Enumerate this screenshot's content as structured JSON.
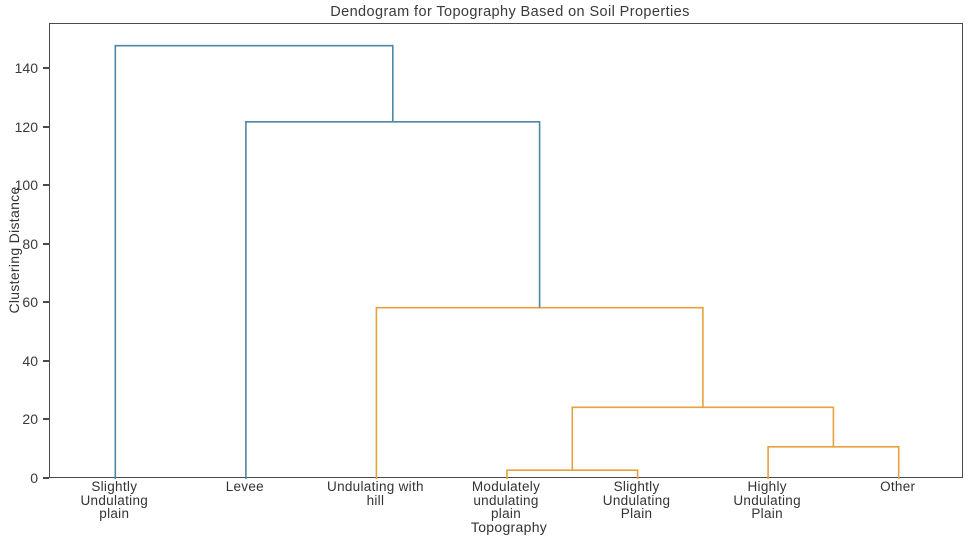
{
  "chart_data": {
    "type": "dendrogram",
    "title": "Dendogram for Topography Based on Soil Properties",
    "xlabel": "Topography",
    "ylabel": "Clustering Distance",
    "ylim": [
      0,
      155.4
    ],
    "yticks": [
      0,
      20,
      40,
      60,
      80,
      100,
      120,
      140
    ],
    "grid": false,
    "legend": false,
    "leaf_order": [
      "Slightly Undulating plain",
      "Levee",
      "Undulating with hill",
      "Modulately undulating plain",
      "Slightly Undulating Plain",
      "Highly Undulating Plain",
      "Other"
    ],
    "leaf_label_lines": [
      [
        "Slightly",
        "Undulating",
        "plain"
      ],
      [
        "Levee"
      ],
      [
        "Undulating with",
        "hill"
      ],
      [
        "Modulately",
        "undulating",
        "plain"
      ],
      [
        "Slightly",
        "Undulating",
        "Plain"
      ],
      [
        "Highly",
        "Undulating",
        "Plain"
      ],
      [
        "Other"
      ]
    ],
    "merges": [
      {
        "a": 3,
        "b": 4,
        "height": 3.0,
        "color": "cluster_orange",
        "joins": "Modulately undulating plain + Slightly Undulating Plain"
      },
      {
        "a": 5,
        "b": 6,
        "height": 11.0,
        "color": "cluster_orange",
        "joins": "Highly Undulating Plain + Other"
      },
      {
        "a": 7,
        "b": 8,
        "height": 24.5,
        "color": "cluster_orange",
        "joins": "cluster(3,4) + cluster(5,6)"
      },
      {
        "a": 2,
        "b": 9,
        "height": 58.5,
        "color": "cluster_orange",
        "joins": "Undulating with hill + cluster(3,4,5,6)"
      },
      {
        "a": 1,
        "b": 10,
        "height": 122.0,
        "color": "above_threshold_blue",
        "joins": "Levee + cluster(2,3,4,5,6)"
      },
      {
        "a": 0,
        "b": 11,
        "height": 148.0,
        "color": "above_threshold_blue",
        "joins": "Slightly Undulating plain + rest"
      }
    ],
    "colors": {
      "above_threshold_blue": "#4e87a5",
      "cluster_orange": "#e6a23c",
      "axis": "#4a4a4a",
      "text": "#3a3a3a",
      "background": "#ffffff"
    }
  }
}
